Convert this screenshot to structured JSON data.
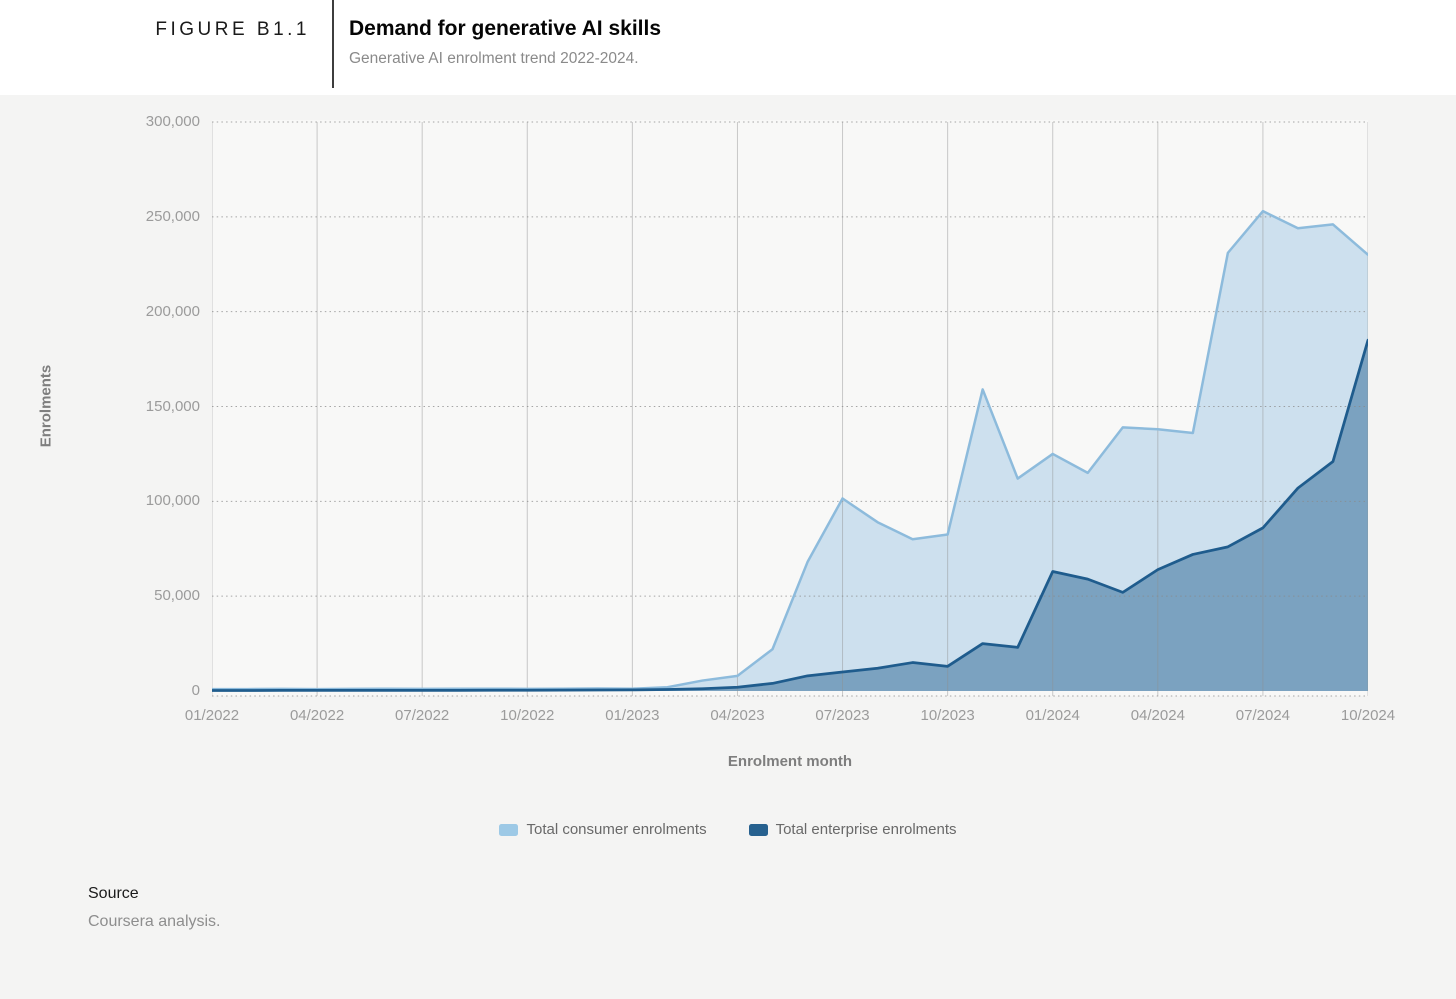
{
  "header": {
    "figure_label": "FIGURE B1.1",
    "title": "Demand for generative AI skills",
    "subtitle": "Generative AI enrolment trend 2022-2024."
  },
  "chart_data": {
    "type": "area",
    "title": "Demand for generative AI skills",
    "xlabel": "Enrolment month",
    "ylabel": "Enrolments",
    "ylim": [
      0,
      300000
    ],
    "ytick_interval": 50000,
    "ytick_labels": [
      "0",
      "50,000",
      "100,000",
      "150,000",
      "200,000",
      "250,000",
      "300,000"
    ],
    "grid": {
      "vertical": "solid",
      "horizontal": "dotted"
    },
    "legend_position": "bottom",
    "x": [
      "01/2022",
      "02/2022",
      "03/2022",
      "04/2022",
      "05/2022",
      "06/2022",
      "07/2022",
      "08/2022",
      "09/2022",
      "10/2022",
      "11/2022",
      "12/2022",
      "01/2023",
      "02/2023",
      "03/2023",
      "04/2023",
      "05/2023",
      "06/2023",
      "07/2023",
      "08/2023",
      "09/2023",
      "10/2023",
      "11/2023",
      "12/2023",
      "01/2024",
      "02/2024",
      "03/2024",
      "04/2024",
      "05/2024",
      "06/2024",
      "07/2024",
      "08/2024",
      "09/2024",
      "10/2024"
    ],
    "xtick_every": 3,
    "xtick_labels": [
      "01/2022",
      "04/2022",
      "07/2022",
      "10/2022",
      "01/2023",
      "04/2023",
      "07/2023",
      "10/2023",
      "01/2024",
      "04/2024",
      "07/2024",
      "10/2024"
    ],
    "series": [
      {
        "name": "Total consumer enrolments",
        "line_color": "#8dbbdc",
        "fill_color": "#cde0ee",
        "swatch_color": "#9dc9e6",
        "values": [
          1000,
          1000,
          1100,
          1000,
          1100,
          1200,
          1100,
          1200,
          1200,
          1100,
          1200,
          1300,
          1200,
          2000,
          5500,
          8000,
          22000,
          68000,
          101500,
          89000,
          80000,
          82500,
          159000,
          112000,
          125000,
          115000,
          139000,
          138000,
          136000,
          231000,
          253000,
          244000,
          246000,
          230000
        ]
      },
      {
        "name": "Total enterprise enrolments",
        "line_color": "#1f5c8d",
        "fill_color": "rgba(31,92,141,0.47)",
        "swatch_color": "#27618f",
        "values": [
          250,
          250,
          300,
          300,
          300,
          350,
          350,
          350,
          400,
          400,
          450,
          500,
          600,
          800,
          1200,
          2000,
          4000,
          8000,
          10000,
          12000,
          15000,
          13000,
          25000,
          23000,
          63000,
          59000,
          52000,
          64000,
          72000,
          76000,
          86000,
          107000,
          121000,
          185000
        ]
      }
    ]
  },
  "footer": {
    "source_label": "Source",
    "source_text": "Coursera analysis."
  }
}
